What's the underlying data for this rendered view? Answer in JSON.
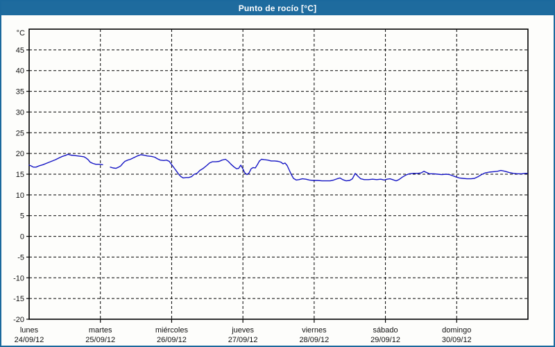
{
  "window": {
    "title": "Punto de rocío [°C]"
  },
  "colors": {
    "header_bg": "#1e6b9e",
    "frame_border": "#1b699d",
    "line": "#1414c4",
    "grid": "#000000",
    "text": "#111111",
    "plot_bg": "#fdfdfb"
  },
  "chart_data": {
    "type": "line",
    "title": "Punto de rocío [°C]",
    "unit_label": "°C",
    "ylim": [
      -20,
      50
    ],
    "ytick_labels": [
      45,
      40,
      35,
      30,
      25,
      20,
      15,
      10,
      5,
      0,
      -5,
      -10,
      -15,
      -20
    ],
    "grid": "dashed",
    "legend_position": "none",
    "x_axis_days": [
      {
        "name": "lunes",
        "date": "24/09/12"
      },
      {
        "name": "martes",
        "date": "25/09/12"
      },
      {
        "name": "miércoles",
        "date": "26/09/12"
      },
      {
        "name": "jueves",
        "date": "27/09/12"
      },
      {
        "name": "viernes",
        "date": "28/09/12"
      },
      {
        "name": "sábado",
        "date": "29/09/12"
      },
      {
        "name": "domingo",
        "date": "30/09/12"
      }
    ],
    "series": [
      {
        "name": "Punto de rocío",
        "color": "#1414c4",
        "x_unit": "days_since_2012-09-24",
        "segments": [
          [
            [
              0.0,
              17.2
            ],
            [
              0.029,
              17.0
            ],
            [
              0.058,
              16.7
            ],
            [
              0.097,
              16.7
            ],
            [
              0.136,
              17.0
            ],
            [
              0.195,
              17.3
            ],
            [
              0.253,
              17.7
            ],
            [
              0.312,
              18.1
            ],
            [
              0.37,
              18.5
            ],
            [
              0.428,
              19.0
            ],
            [
              0.467,
              19.3
            ],
            [
              0.506,
              19.5
            ],
            [
              0.545,
              19.8
            ],
            [
              0.584,
              19.6
            ],
            [
              0.633,
              19.5
            ],
            [
              0.682,
              19.4
            ],
            [
              0.73,
              19.3
            ],
            [
              0.769,
              19.2
            ],
            [
              0.798,
              18.9
            ],
            [
              0.828,
              18.5
            ],
            [
              0.857,
              17.9
            ],
            [
              0.896,
              17.6
            ],
            [
              0.935,
              17.4
            ],
            [
              0.983,
              17.4
            ],
            [
              1.032,
              17.3
            ]
          ],
          [
            [
              1.139,
              16.7
            ],
            [
              1.178,
              16.5
            ],
            [
              1.217,
              16.4
            ],
            [
              1.256,
              16.7
            ],
            [
              1.285,
              17.0
            ],
            [
              1.314,
              17.6
            ],
            [
              1.344,
              18.1
            ],
            [
              1.383,
              18.4
            ],
            [
              1.422,
              18.6
            ],
            [
              1.47,
              19.0
            ],
            [
              1.519,
              19.4
            ],
            [
              1.568,
              19.7
            ],
            [
              1.607,
              19.6
            ],
            [
              1.655,
              19.4
            ],
            [
              1.714,
              19.3
            ],
            [
              1.762,
              19.1
            ],
            [
              1.801,
              18.7
            ],
            [
              1.84,
              18.4
            ],
            [
              1.889,
              18.3
            ],
            [
              1.928,
              18.4
            ],
            [
              1.967,
              18.1
            ],
            [
              1.996,
              17.4
            ],
            [
              2.035,
              16.5
            ],
            [
              2.074,
              15.6
            ],
            [
              2.103,
              14.9
            ],
            [
              2.132,
              14.4
            ],
            [
              2.161,
              14.1
            ],
            [
              2.2,
              14.2
            ],
            [
              2.239,
              14.2
            ],
            [
              2.278,
              14.4
            ],
            [
              2.317,
              15.0
            ],
            [
              2.356,
              15.2
            ],
            [
              2.395,
              15.9
            ],
            [
              2.444,
              16.4
            ],
            [
              2.492,
              17.1
            ],
            [
              2.531,
              17.7
            ],
            [
              2.57,
              18.0
            ],
            [
              2.619,
              18.0
            ],
            [
              2.668,
              18.1
            ],
            [
              2.707,
              18.4
            ],
            [
              2.755,
              18.6
            ],
            [
              2.794,
              18.1
            ],
            [
              2.833,
              17.4
            ],
            [
              2.872,
              16.8
            ],
            [
              2.911,
              16.3
            ],
            [
              2.94,
              16.4
            ],
            [
              2.97,
              17.2
            ],
            [
              2.999,
              16.3
            ],
            [
              3.028,
              15.3
            ],
            [
              3.057,
              14.9
            ],
            [
              3.086,
              15.3
            ],
            [
              3.115,
              16.3
            ],
            [
              3.145,
              16.6
            ],
            [
              3.174,
              16.5
            ],
            [
              3.203,
              17.3
            ],
            [
              3.232,
              18.2
            ],
            [
              3.261,
              18.6
            ],
            [
              3.3,
              18.5
            ],
            [
              3.349,
              18.4
            ],
            [
              3.397,
              18.2
            ],
            [
              3.446,
              18.2
            ],
            [
              3.495,
              18.1
            ],
            [
              3.534,
              17.9
            ],
            [
              3.563,
              17.5
            ],
            [
              3.592,
              17.7
            ],
            [
              3.621,
              17.1
            ],
            [
              3.65,
              16.0
            ],
            [
              3.68,
              14.9
            ],
            [
              3.709,
              14.0
            ],
            [
              3.748,
              13.6
            ],
            [
              3.787,
              13.7
            ],
            [
              3.835,
              13.9
            ],
            [
              3.884,
              13.8
            ],
            [
              3.933,
              13.6
            ],
            [
              3.991,
              13.5
            ],
            [
              4.05,
              13.5
            ],
            [
              4.108,
              13.4
            ],
            [
              4.167,
              13.4
            ],
            [
              4.225,
              13.4
            ],
            [
              4.274,
              13.6
            ],
            [
              4.323,
              13.9
            ],
            [
              4.362,
              14.1
            ],
            [
              4.401,
              13.7
            ],
            [
              4.449,
              13.4
            ],
            [
              4.498,
              13.5
            ],
            [
              4.537,
              13.9
            ],
            [
              4.576,
              15.2
            ],
            [
              4.615,
              14.5
            ],
            [
              4.654,
              13.9
            ],
            [
              4.703,
              13.7
            ],
            [
              4.761,
              13.7
            ],
            [
              4.819,
              13.8
            ],
            [
              4.878,
              13.7
            ],
            [
              4.936,
              13.8
            ],
            [
              4.985,
              13.6
            ],
            [
              5.024,
              13.8
            ],
            [
              5.063,
              13.9
            ],
            [
              5.102,
              13.7
            ],
            [
              5.15,
              13.4
            ],
            [
              5.189,
              13.7
            ],
            [
              5.238,
              14.3
            ],
            [
              5.287,
              14.8
            ],
            [
              5.335,
              15.1
            ],
            [
              5.394,
              15.2
            ],
            [
              5.452,
              15.2
            ],
            [
              5.501,
              15.3
            ],
            [
              5.54,
              15.7
            ],
            [
              5.579,
              15.4
            ],
            [
              5.618,
              15.1
            ],
            [
              5.676,
              15.1
            ],
            [
              5.735,
              15.0
            ],
            [
              5.793,
              14.9
            ],
            [
              5.851,
              15.0
            ],
            [
              5.9,
              14.9
            ],
            [
              5.949,
              14.6
            ],
            [
              5.997,
              14.3
            ],
            [
              6.036,
              14.1
            ],
            [
              6.085,
              14.0
            ],
            [
              6.143,
              13.9
            ],
            [
              6.202,
              13.9
            ],
            [
              6.25,
              14.0
            ],
            [
              6.299,
              14.4
            ],
            [
              6.348,
              14.9
            ],
            [
              6.397,
              15.3
            ],
            [
              6.455,
              15.5
            ],
            [
              6.513,
              15.6
            ],
            [
              6.572,
              15.7
            ],
            [
              6.62,
              15.9
            ],
            [
              6.679,
              15.7
            ],
            [
              6.737,
              15.4
            ],
            [
              6.796,
              15.2
            ],
            [
              6.854,
              15.1
            ],
            [
              6.913,
              15.1
            ],
            [
              6.961,
              15.2
            ],
            [
              6.99,
              15.2
            ]
          ]
        ]
      }
    ]
  }
}
